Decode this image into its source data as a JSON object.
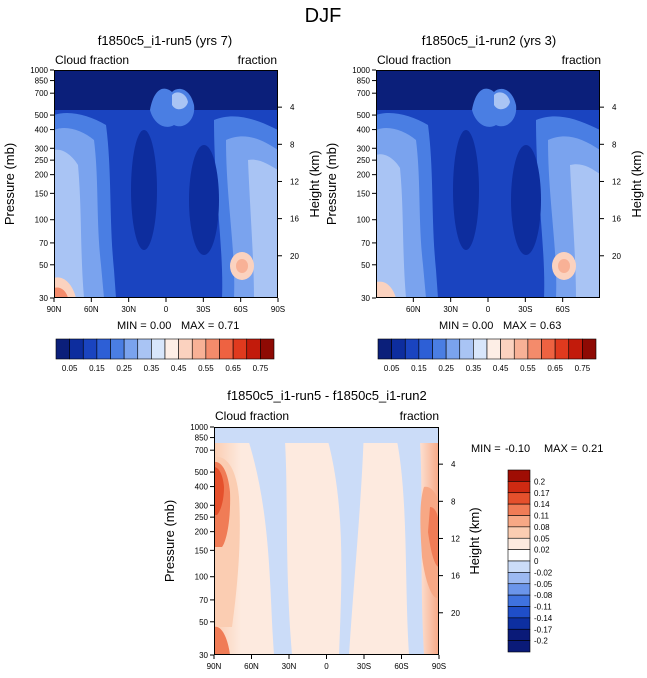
{
  "figure_title": "DJF",
  "colors": {
    "seq": [
      "#0b1f7a",
      "#0d2d9e",
      "#1a44c0",
      "#2d5fd6",
      "#4a7ee3",
      "#7aa3ee",
      "#a9c4f4",
      "#d8e6fb",
      "#fdeee6",
      "#fbd2bf",
      "#f8b196",
      "#f48b6b",
      "#ee6241",
      "#e03a1e",
      "#c21b0b",
      "#8e0a04"
    ],
    "div": [
      "#0a1a78",
      "#0d2fa0",
      "#1f4ec8",
      "#3f72df",
      "#6b95ea",
      "#9cb9f2",
      "#cbdcf8",
      "#ffffff",
      "#fdeadf",
      "#fbcdb2",
      "#f7a885",
      "#f07c56",
      "#e5502c",
      "#cf2a12",
      "#9f0d04"
    ]
  },
  "chart_data": [
    {
      "type": "heatmap",
      "title": "f1850c5_i1-run5 (yrs 7)",
      "left_label": "Cloud fraction",
      "right_label": "fraction",
      "ylabel": "Pressure (mb)",
      "y2label": "Height (km)",
      "xticks": [
        "90N",
        "60N",
        "30N",
        "0",
        "30S",
        "60S",
        "90S"
      ],
      "yticks": [
        "1000",
        "850",
        "700",
        "500",
        "400",
        "300",
        "250",
        "200",
        "150",
        "100",
        "70",
        "50",
        "30"
      ],
      "y2ticks": [
        "4",
        "8",
        "12",
        "16",
        "20"
      ],
      "min_label": "MIN =",
      "min_value": "0.00",
      "max_label": "MAX =",
      "max_value": "0.71",
      "colorbar_labels": [
        "0.05",
        "0.15",
        "0.25",
        "0.35",
        "0.45",
        "0.55",
        "0.65",
        "0.75"
      ],
      "levels": [
        0.05,
        0.1,
        0.15,
        0.2,
        0.25,
        0.3,
        0.35,
        0.4,
        0.45,
        0.5,
        0.55,
        0.6,
        0.65,
        0.7,
        0.75
      ],
      "ylim": [
        1000,
        30
      ],
      "xlim": [
        "90N",
        "90S"
      ]
    },
    {
      "type": "heatmap",
      "title": "f1850c5_i1-run2 (yrs 3)",
      "left_label": "Cloud fraction",
      "right_label": "fraction",
      "ylabel": "Pressure (mb)",
      "y2label": "Height (km)",
      "xticks": [
        "60N",
        "30N",
        "0",
        "30S",
        "60S"
      ],
      "yticks": [
        "1000",
        "850",
        "700",
        "500",
        "400",
        "300",
        "250",
        "200",
        "150",
        "100",
        "70",
        "50",
        "30"
      ],
      "y2ticks": [
        "4",
        "8",
        "12",
        "16",
        "20"
      ],
      "min_label": "MIN =",
      "min_value": "0.00",
      "max_label": "MAX =",
      "max_value": "0.63",
      "colorbar_labels": [
        "0.05",
        "0.15",
        "0.25",
        "0.35",
        "0.45",
        "0.55",
        "0.65",
        "0.75"
      ],
      "levels": [
        0.05,
        0.1,
        0.15,
        0.2,
        0.25,
        0.3,
        0.35,
        0.4,
        0.45,
        0.5,
        0.55,
        0.6,
        0.65,
        0.7,
        0.75
      ],
      "ylim": [
        1000,
        30
      ],
      "xlim": [
        "90N",
        "90S"
      ]
    },
    {
      "type": "heatmap",
      "title": "f1850c5_i1-run5 - f1850c5_i1-run2",
      "left_label": "Cloud fraction",
      "right_label": "fraction",
      "ylabel": "Pressure (mb)",
      "y2label": "Height (km)",
      "xticks": [
        "90N",
        "60N",
        "30N",
        "0",
        "30S",
        "60S",
        "90S"
      ],
      "yticks": [
        "1000",
        "850",
        "700",
        "500",
        "400",
        "300",
        "250",
        "200",
        "150",
        "100",
        "70",
        "50",
        "30"
      ],
      "y2ticks": [
        "4",
        "8",
        "12",
        "16",
        "20"
      ],
      "min_label": "MIN =",
      "min_value": "-0.10",
      "max_label": "MAX =",
      "max_value": "0.21",
      "colorbar_labels": [
        "0.2",
        "0.17",
        "0.14",
        "0.11",
        "0.08",
        "0.05",
        "0.02",
        "0",
        "-0.02",
        "-0.05",
        "-0.08",
        "-0.11",
        "-0.14",
        "-0.17",
        "-0.2"
      ],
      "levels": [
        -0.2,
        -0.17,
        -0.14,
        -0.11,
        -0.08,
        -0.05,
        -0.02,
        0,
        0.02,
        0.05,
        0.08,
        0.11,
        0.14,
        0.17,
        0.2
      ],
      "ylim": [
        1000,
        30
      ],
      "xlim": [
        "90N",
        "90S"
      ]
    }
  ]
}
